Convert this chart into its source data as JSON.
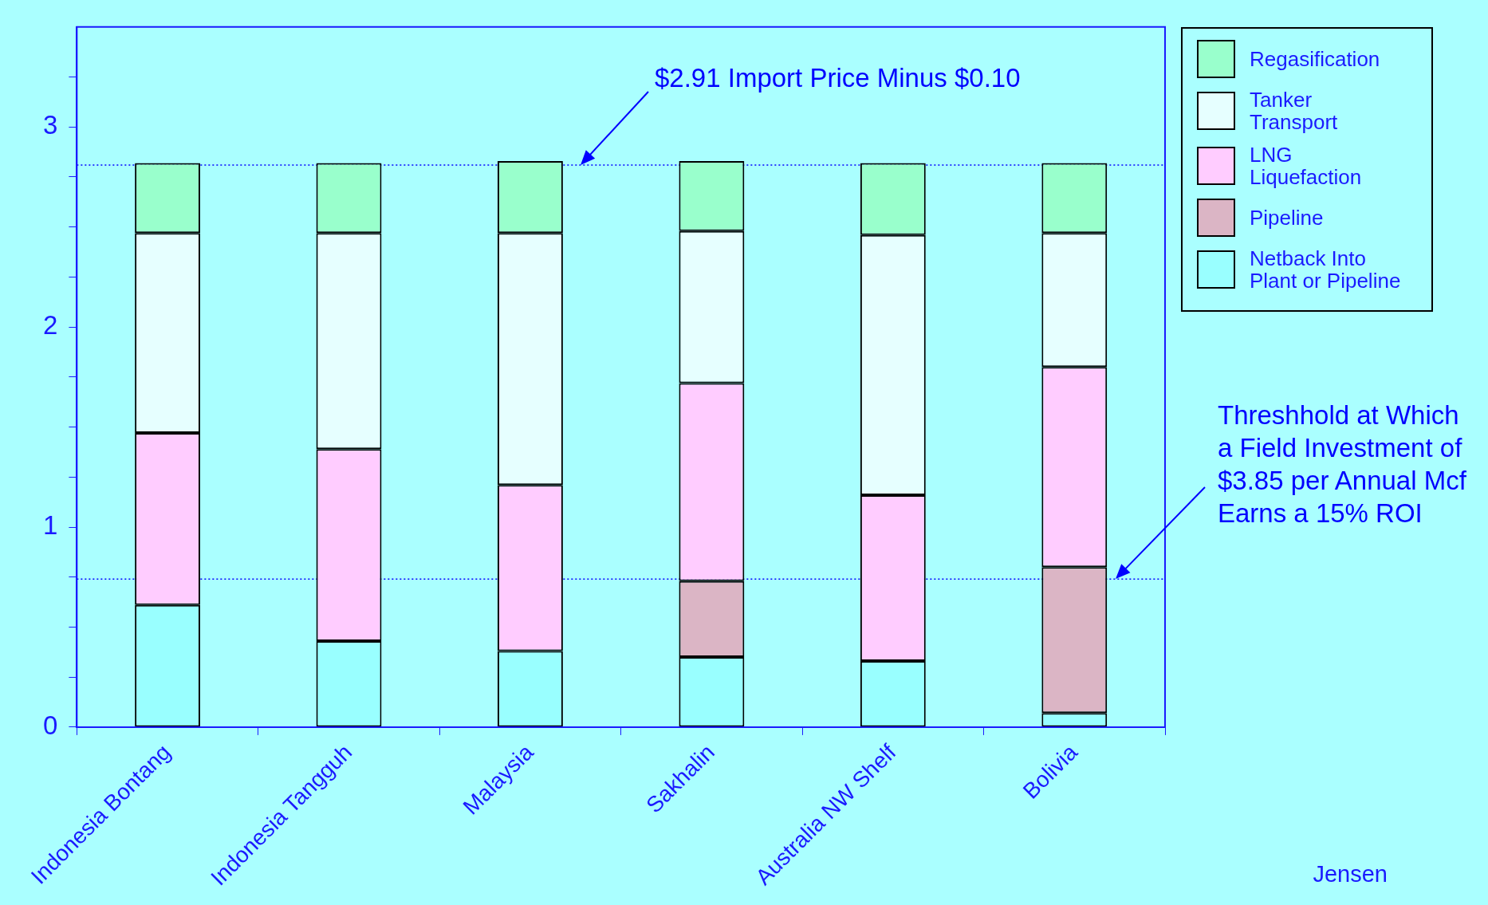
{
  "chart_data": {
    "type": "bar",
    "stacked": true,
    "categories": [
      "Indonesia Bontang",
      "Indonesia Tangguh",
      "Malaysia",
      "Sakhalin",
      "Australia NW Shelf",
      "Bolivia"
    ],
    "series": [
      {
        "name": "Netback Into Plant or Pipeline",
        "color": "#99ffff",
        "values": [
          0.61,
          0.43,
          0.38,
          0.35,
          0.33,
          0.07
        ]
      },
      {
        "name": "Pipeline",
        "color": "#dbb5c5",
        "values": [
          0,
          0,
          0,
          0.38,
          0,
          0.73
        ]
      },
      {
        "name": "LNG Liquefaction",
        "color": "#ffccff",
        "values": [
          0.86,
          0.96,
          0.83,
          0.99,
          0.83,
          1.0
        ]
      },
      {
        "name": "Tanker Transport",
        "color": "#e6ffff",
        "values": [
          1.0,
          1.08,
          1.26,
          0.76,
          1.3,
          0.67
        ]
      },
      {
        "name": "Regasification",
        "color": "#99ffcc",
        "values": [
          0.35,
          0.35,
          0.36,
          0.35,
          0.36,
          0.35
        ]
      }
    ],
    "ylim": [
      0,
      3.5
    ],
    "yticks": [
      0,
      {
        "value": 0.25,
        "label": null
      },
      {
        "value": 0.5,
        "label": null
      },
      {
        "value": 0.75,
        "label": null
      },
      1,
      {
        "value": 1.25,
        "label": null
      },
      {
        "value": 1.5,
        "label": null
      },
      {
        "value": 1.75,
        "label": null
      },
      2,
      {
        "value": 2.25,
        "label": null
      },
      {
        "value": 2.5,
        "label": null
      },
      {
        "value": 2.75,
        "label": null
      },
      3,
      {
        "value": 3.25,
        "label": null
      }
    ],
    "ref_lines": [
      {
        "axis": "y",
        "value": 2.81,
        "label": "$2.91 Import Price Minus $0.10",
        "color": "#0000ff",
        "line_style": "dotted"
      },
      {
        "axis": "y",
        "value": 0.74,
        "label": "Threshhold at Which a Field Investment of $3.85 per Annual Mcf Earns a 15% ROI",
        "color": "#0000ff",
        "line_style": "dotted"
      }
    ],
    "annotations": [
      "Jensen"
    ],
    "grid": false,
    "legend": "right"
  }
}
